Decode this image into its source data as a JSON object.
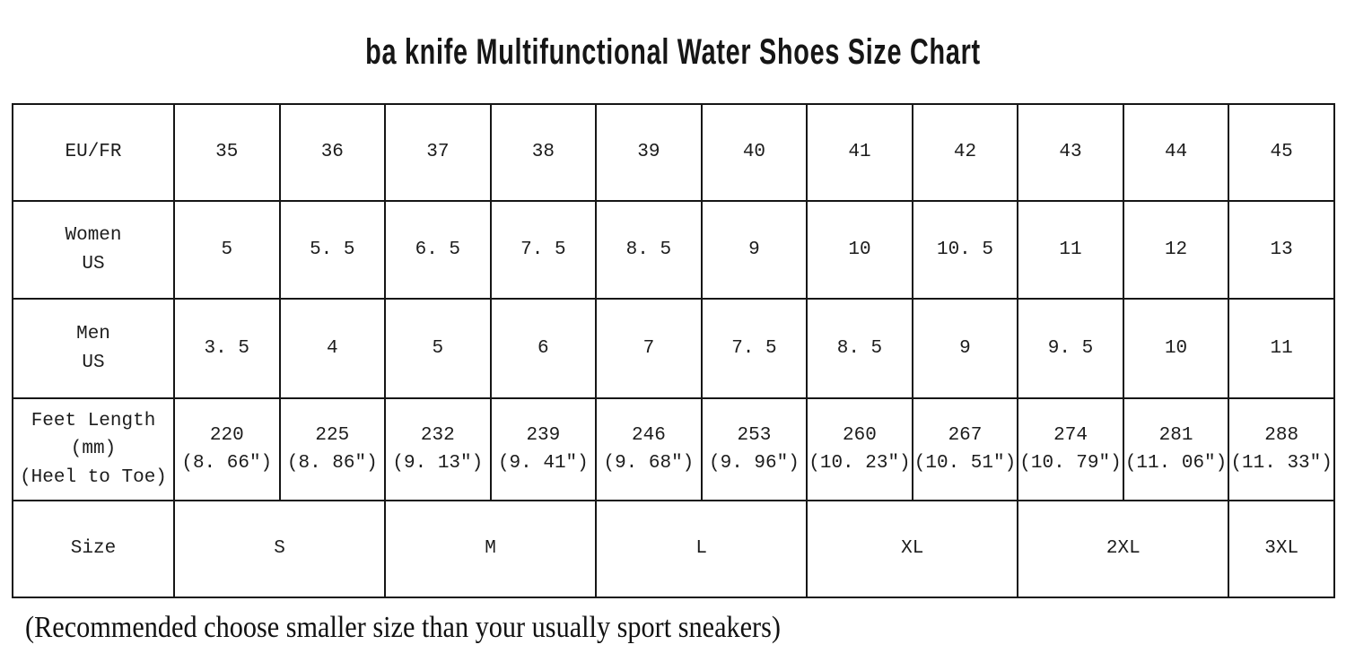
{
  "page": {
    "title": "ba knife Multifunctional Water Shoes Size Chart",
    "note": "(Recommended choose smaller size than your usually sport sneakers)"
  },
  "table": {
    "rows": [
      {
        "label": "EU/FR",
        "cells": [
          "35",
          "36",
          "37",
          "38",
          "39",
          "40",
          "41",
          "42",
          "43",
          "44",
          "45"
        ]
      },
      {
        "label": "Women\nUS",
        "cells": [
          "5",
          "5. 5",
          "6. 5",
          "7. 5",
          "8. 5",
          "9",
          "10",
          "10. 5",
          "11",
          "12",
          "13"
        ]
      },
      {
        "label": "Men\nUS",
        "cells": [
          "3. 5",
          "4",
          "5",
          "6",
          "7",
          "7. 5",
          "8. 5",
          "9",
          "9. 5",
          "10",
          "11"
        ]
      },
      {
        "label": "Feet Length\n(mm)\n(Heel to Toe)",
        "cells": [
          "220\n(8. 66″)",
          "225\n(8. 86″)",
          "232\n(9. 13″)",
          "239\n(9. 41″)",
          "246\n(9. 68″)",
          "253\n(9. 96″)",
          "260\n(10. 23″)",
          "267\n(10. 51″)",
          "274\n(10. 79″)",
          "281\n(11. 06″)",
          "288\n(11. 33″)"
        ]
      },
      {
        "label": "Size",
        "cells": [
          "S",
          "M",
          "L",
          "XL",
          "2XL",
          "3XL"
        ]
      }
    ]
  }
}
